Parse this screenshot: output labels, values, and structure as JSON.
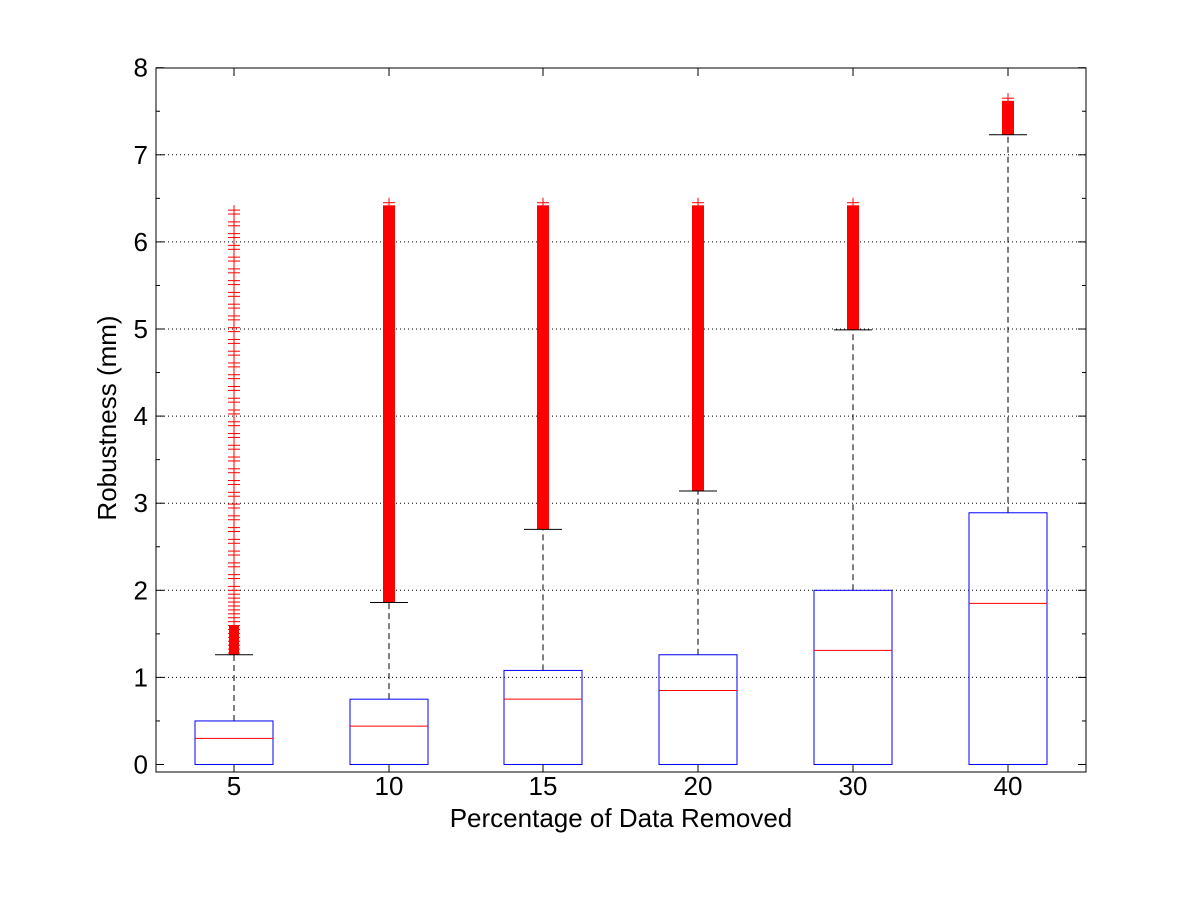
{
  "chart_data": {
    "type": "box",
    "xlabel": "Percentage of Data Removed",
    "ylabel": "Robustness (mm)",
    "ylim": [
      -0.1,
      8
    ],
    "yticks": [
      0,
      1,
      2,
      3,
      4,
      5,
      6,
      7,
      8
    ],
    "grid": "horizontal dotted",
    "categories": [
      "5",
      "10",
      "15",
      "20",
      "30",
      "40"
    ],
    "boxes": [
      {
        "category": "5",
        "q1": 0.0,
        "median": 0.3,
        "q3": 0.5,
        "whisker_low": 0.0,
        "whisker_high": 1.26,
        "outlier_range": [
          1.26,
          6.45
        ],
        "outliers_dense": false
      },
      {
        "category": "10",
        "q1": 0.0,
        "median": 0.44,
        "q3": 0.75,
        "whisker_low": 0.0,
        "whisker_high": 1.86,
        "outlier_range": [
          1.86,
          6.45
        ],
        "outliers_dense": true
      },
      {
        "category": "15",
        "q1": 0.0,
        "median": 0.75,
        "q3": 1.08,
        "whisker_low": 0.0,
        "whisker_high": 2.7,
        "outlier_range": [
          2.7,
          6.45
        ],
        "outliers_dense": true
      },
      {
        "category": "20",
        "q1": 0.0,
        "median": 0.85,
        "q3": 1.26,
        "whisker_low": 0.0,
        "whisker_high": 3.14,
        "outlier_range": [
          3.14,
          6.45
        ],
        "outliers_dense": true
      },
      {
        "category": "30",
        "q1": 0.0,
        "median": 1.31,
        "q3": 2.0,
        "whisker_low": 0.0,
        "whisker_high": 4.99,
        "outlier_range": [
          4.99,
          6.45
        ],
        "outliers_dense": true
      },
      {
        "category": "40",
        "q1": 0.0,
        "median": 1.85,
        "q3": 2.89,
        "whisker_low": 0.0,
        "whisker_high": 7.23,
        "outlier_range": [
          7.23,
          7.65
        ],
        "outliers_dense": true
      }
    ],
    "colors": {
      "box": "#0000ff",
      "median": "#ff0000",
      "outlier": "#ff0000",
      "whisker": "#000000",
      "grid": "#000000"
    }
  }
}
